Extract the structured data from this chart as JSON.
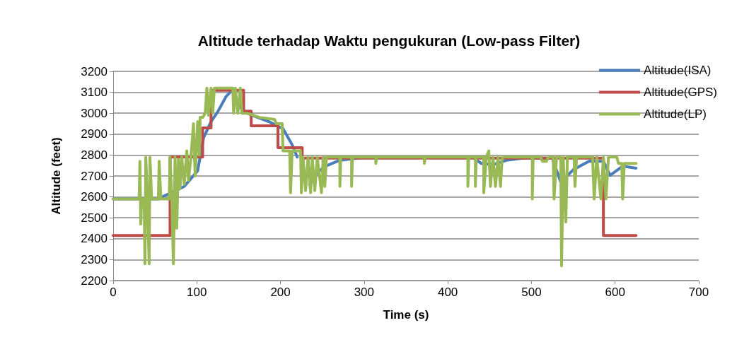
{
  "chart_data": {
    "type": "line",
    "title": "Altitude terhadap Waktu pengukuran (Low-pass Filter)",
    "xlabel": "Time (s)",
    "ylabel": "Altitude (feet)",
    "xlim": [
      0,
      700
    ],
    "xticks": [
      0,
      100,
      200,
      300,
      400,
      500,
      600,
      700
    ],
    "ylim": [
      2200,
      3200
    ],
    "yticks": [
      2200,
      2300,
      2400,
      2500,
      2600,
      2700,
      2800,
      2900,
      3000,
      3100,
      3200
    ],
    "grid": "y",
    "legend": "top right",
    "marker": "none",
    "line_style": "solid",
    "series": [
      {
        "name": "Altitude(ISA)",
        "color": "#4a7ebb",
        "x": [
          0,
          55,
          61,
          70,
          85,
          101,
          108,
          117,
          125,
          135,
          142,
          146,
          155,
          166,
          186,
          203,
          214,
          220,
          228,
          235,
          245,
          254,
          270,
          298,
          430,
          440,
          455,
          470,
          490,
          525,
          535,
          550,
          569,
          586,
          594,
          609,
          625
        ],
        "values": [
          2590,
          2590,
          2605,
          2620,
          2650,
          2725,
          2882,
          2960,
          3007,
          3080,
          3109,
          3075,
          3010,
          2990,
          2960,
          2926,
          2849,
          2790,
          null,
          2660,
          2720,
          2747,
          2774,
          2788,
          2788,
          2760,
          2755,
          2775,
          2785,
          2785,
          2670,
          2730,
          2771,
          2770,
          2703,
          2747,
          2737
        ]
      },
      {
        "name": "Altitude(GPS)",
        "color": "#be4b48",
        "x": [
          0,
          68,
          68,
          107,
          107,
          117,
          117,
          156,
          156,
          165,
          165,
          197,
          197,
          226,
          226,
          586,
          586,
          625
        ],
        "values": [
          2415,
          2415,
          2790,
          2790,
          2930,
          2930,
          3110,
          3110,
          3010,
          3010,
          2940,
          2940,
          2835,
          2835,
          2785,
          2785,
          2415,
          2415
        ]
      },
      {
        "name": "Altitude(LP)",
        "color": "#98b954",
        "x": [
          0,
          31,
          32,
          33,
          34,
          37,
          38,
          39,
          41,
          43,
          44,
          46,
          54,
          55,
          57,
          67,
          68,
          70,
          72,
          74,
          76,
          78,
          80,
          82,
          85,
          88,
          90,
          93,
          96,
          98,
          101,
          103,
          104,
          107,
          110,
          112,
          114,
          117,
          119,
          121,
          143,
          144,
          146,
          149,
          152,
          154,
          160,
          175,
          193,
          195,
          202,
          203,
          211,
          212,
          214,
          224,
          225,
          227,
          230,
          233,
          236,
          238,
          241,
          244,
          249,
          251,
          253,
          255,
          271,
          271,
          272,
          285,
          285,
          286,
          314,
          314,
          315,
          372,
          372,
          373,
          424,
          424,
          425,
          433,
          433,
          434,
          443,
          443,
          446,
          449,
          451,
          454,
          457,
          460,
          463,
          465,
          501,
          501,
          502,
          511,
          513,
          518,
          520,
          526,
          527,
          530,
          535,
          536,
          538,
          541,
          543,
          551,
          552,
          554,
          573,
          575,
          578,
          583,
          586,
          589,
          592,
          602,
          604,
          608,
          609,
          611,
          625
        ],
        "values": [
          2590,
          2590,
          2770,
          2470,
          2590,
          2590,
          2280,
          2790,
          2590,
          2280,
          2790,
          2590,
          2590,
          2770,
          2590,
          2590,
          2790,
          2600,
          2280,
          2790,
          2450,
          2780,
          2640,
          2790,
          2660,
          2820,
          2680,
          2790,
          2950,
          2700,
          2960,
          2800,
          2980,
          2980,
          3000,
          3120,
          2990,
          3120,
          3000,
          3120,
          3120,
          3000,
          3120,
          3000,
          3120,
          3000,
          3000,
          2980,
          2970,
          2950,
          2950,
          2820,
          2820,
          2620,
          2820,
          2820,
          2620,
          2790,
          2630,
          2790,
          2620,
          2790,
          2630,
          2790,
          2620,
          2790,
          2650,
          2790,
          2790,
          2650,
          2790,
          2790,
          2650,
          2790,
          2790,
          2760,
          2790,
          2790,
          2760,
          2790,
          2790,
          2650,
          2790,
          2790,
          2650,
          2790,
          2790,
          2620,
          2790,
          2820,
          2650,
          2790,
          2650,
          2790,
          2650,
          2790,
          2790,
          2590,
          2790,
          2790,
          2770,
          2770,
          2790,
          2790,
          2590,
          2790,
          2790,
          2270,
          2790,
          2480,
          2790,
          2790,
          2650,
          2790,
          2790,
          2590,
          2790,
          2590,
          2790,
          2590,
          2790,
          2790,
          2760,
          2760,
          2590,
          2760,
          2760
        ]
      }
    ]
  }
}
